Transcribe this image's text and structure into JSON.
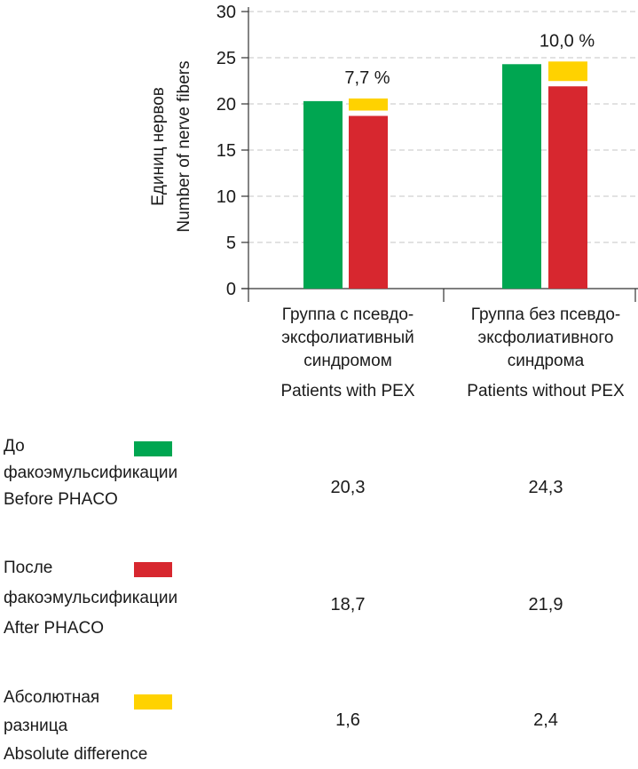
{
  "chart_data": {
    "type": "bar",
    "ylabel_ru": "Единиц нервов",
    "ylabel_en": "Number of nerve fibers",
    "ylim": [
      0,
      30
    ],
    "yticks": [
      0,
      5,
      10,
      15,
      20,
      25,
      30
    ],
    "grid": "horizontal dashed",
    "categories": [
      {
        "lines": [
          "Группа с псевдо-",
          "эксфолиативный",
          "синдромом",
          "Patients with PEX"
        ]
      },
      {
        "lines": [
          "Группа без псевдо-",
          "эксфолиативного",
          "синдрома",
          "Patients without PEX"
        ]
      }
    ],
    "series": [
      {
        "label_lines": [
          "До",
          "факоэмульсификации",
          "Before PHACO"
        ],
        "color": "#00a651",
        "values": [
          20.3,
          24.3
        ],
        "value_labels": [
          "20,3",
          "24,3"
        ]
      },
      {
        "label_lines": [
          "После",
          "факоэмульсификации",
          "After PHACO"
        ],
        "color": "#d7272f",
        "values": [
          18.7,
          21.9
        ],
        "value_labels": [
          "18,7",
          "21,9"
        ]
      },
      {
        "label_lines": [
          "Абсолютная",
          "разница",
          "Absolute difference"
        ],
        "color": "#ffd200",
        "values": [
          1.6,
          2.4
        ],
        "value_labels": [
          "1,6",
          "2,4"
        ]
      }
    ],
    "annotations": [
      "7,7 %",
      "10,0 %"
    ]
  }
}
